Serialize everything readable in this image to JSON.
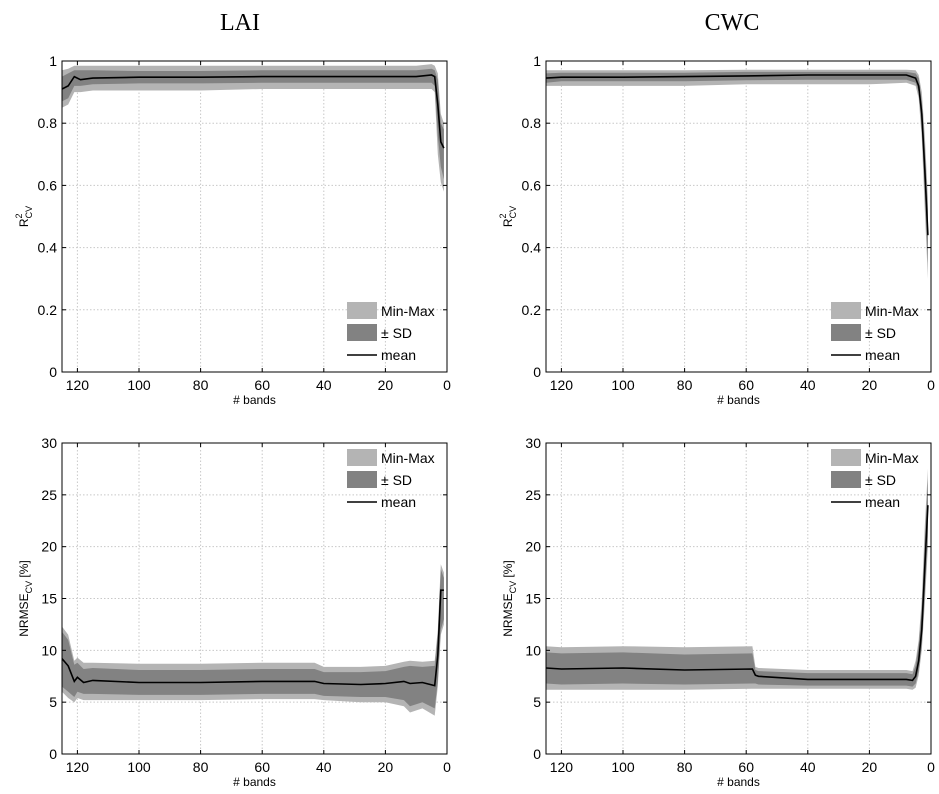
{
  "column_titles": [
    "LAI",
    "CWC"
  ],
  "legend": {
    "minmax": "Min-Max",
    "sd": "± SD",
    "mean": "mean"
  },
  "colors": {
    "minmax": "#b4b4b4",
    "sd": "#828282",
    "mean": "#000000",
    "grid": "#c8c8c8"
  },
  "chart_data": [
    {
      "id": "lai-r2",
      "type": "area",
      "title": "LAI",
      "xlabel": "# bands",
      "ylabel": "R²CV",
      "ylabel_main": "R",
      "ylabel_sup": "2",
      "ylabel_sub": "CV",
      "ylabel_suffix": "",
      "xlim": [
        125,
        0
      ],
      "ylim": [
        0,
        1
      ],
      "xticks": [
        120,
        100,
        80,
        60,
        40,
        20,
        0
      ],
      "yticks": [
        0,
        0.2,
        0.4,
        0.6,
        0.8,
        1
      ],
      "ytick_labels": [
        "0",
        "0.2",
        "0.4",
        "0.6",
        "0.8",
        "1"
      ],
      "grid": true,
      "legend_position": "bottom-right",
      "x": [
        125,
        123,
        121,
        119,
        115,
        100,
        80,
        60,
        40,
        20,
        10,
        5,
        4,
        3,
        2,
        1
      ],
      "mean": [
        0.91,
        0.92,
        0.95,
        0.94,
        0.945,
        0.948,
        0.948,
        0.95,
        0.95,
        0.95,
        0.95,
        0.955,
        0.95,
        0.86,
        0.74,
        0.72
      ],
      "sd_low": [
        0.87,
        0.88,
        0.92,
        0.92,
        0.925,
        0.928,
        0.928,
        0.93,
        0.93,
        0.93,
        0.93,
        0.93,
        0.92,
        0.76,
        0.66,
        0.62
      ],
      "sd_high": [
        0.95,
        0.96,
        0.97,
        0.97,
        0.97,
        0.968,
        0.968,
        0.97,
        0.97,
        0.97,
        0.97,
        0.975,
        0.97,
        0.94,
        0.8,
        0.78
      ],
      "min": [
        0.85,
        0.86,
        0.9,
        0.9,
        0.905,
        0.905,
        0.905,
        0.91,
        0.91,
        0.91,
        0.91,
        0.91,
        0.9,
        0.7,
        0.61,
        0.58
      ],
      "max": [
        0.97,
        0.975,
        0.985,
        0.985,
        0.985,
        0.985,
        0.985,
        0.985,
        0.985,
        0.985,
        0.985,
        0.99,
        0.985,
        0.96,
        0.83,
        0.8
      ]
    },
    {
      "id": "cwc-r2",
      "type": "area",
      "title": "CWC",
      "xlabel": "# bands",
      "ylabel": "R²CV",
      "ylabel_main": "R",
      "ylabel_sup": "2",
      "ylabel_sub": "CV",
      "ylabel_suffix": "",
      "xlim": [
        125,
        0
      ],
      "ylim": [
        0,
        1
      ],
      "xticks": [
        120,
        100,
        80,
        60,
        40,
        20,
        0
      ],
      "yticks": [
        0,
        0.2,
        0.4,
        0.6,
        0.8,
        1
      ],
      "ytick_labels": [
        "0",
        "0.2",
        "0.4",
        "0.6",
        "0.8",
        "1"
      ],
      "grid": true,
      "legend_position": "bottom-right",
      "x": [
        125,
        120,
        100,
        80,
        60,
        40,
        20,
        8,
        5,
        4,
        3,
        2,
        1
      ],
      "mean": [
        0.945,
        0.948,
        0.948,
        0.95,
        0.952,
        0.955,
        0.955,
        0.955,
        0.945,
        0.92,
        0.83,
        0.65,
        0.44
      ],
      "sd_low": [
        0.93,
        0.935,
        0.935,
        0.935,
        0.938,
        0.94,
        0.94,
        0.94,
        0.93,
        0.9,
        0.78,
        0.58,
        0.35
      ],
      "sd_high": [
        0.96,
        0.962,
        0.962,
        0.962,
        0.965,
        0.965,
        0.965,
        0.965,
        0.96,
        0.945,
        0.87,
        0.72,
        0.52
      ],
      "min": [
        0.92,
        0.92,
        0.92,
        0.92,
        0.925,
        0.925,
        0.925,
        0.93,
        0.92,
        0.88,
        0.75,
        0.52,
        0.3
      ],
      "max": [
        0.97,
        0.97,
        0.97,
        0.97,
        0.972,
        0.972,
        0.972,
        0.972,
        0.97,
        0.955,
        0.9,
        0.76,
        0.56
      ]
    },
    {
      "id": "lai-nrmse",
      "type": "area",
      "title": "LAI",
      "xlabel": "# bands",
      "ylabel": "NRMSECV [%]",
      "ylabel_main": "NRMSE",
      "ylabel_sup": "",
      "ylabel_sub": "CV",
      "ylabel_suffix": " [%]",
      "xlim": [
        125,
        0
      ],
      "ylim": [
        0,
        30
      ],
      "xticks": [
        120,
        100,
        80,
        60,
        40,
        20,
        0
      ],
      "yticks": [
        0,
        5,
        10,
        15,
        20,
        25,
        30
      ],
      "ytick_labels": [
        "0",
        "5",
        "10",
        "15",
        "20",
        "25",
        "30"
      ],
      "grid": true,
      "legend_position": "top-right",
      "x": [
        125,
        123,
        121,
        120,
        118,
        115,
        100,
        80,
        60,
        43,
        40,
        28,
        20,
        14,
        12,
        8,
        4,
        3,
        2,
        1
      ],
      "mean": [
        9.2,
        8.5,
        7.0,
        7.4,
        6.9,
        7.1,
        6.9,
        6.9,
        7.0,
        7.0,
        6.8,
        6.7,
        6.8,
        7.0,
        6.8,
        6.9,
        6.6,
        9.5,
        15.8,
        15.8
      ],
      "sd_low": [
        6.5,
        6.0,
        5.5,
        6.0,
        5.8,
        5.8,
        5.7,
        5.7,
        5.8,
        5.8,
        5.6,
        5.5,
        5.5,
        5.2,
        4.6,
        5.0,
        4.4,
        7.0,
        12.0,
        13.0
      ],
      "sd_high": [
        11.8,
        11.0,
        8.6,
        8.8,
        8.2,
        8.3,
        8.1,
        8.1,
        8.2,
        8.2,
        7.9,
        7.9,
        8.0,
        8.4,
        8.5,
        8.4,
        8.5,
        11.5,
        17.8,
        17.0
      ],
      "min": [
        6.0,
        5.4,
        5.0,
        5.4,
        5.2,
        5.2,
        5.2,
        5.2,
        5.3,
        5.3,
        5.2,
        5.0,
        5.0,
        4.6,
        4.0,
        4.4,
        3.7,
        6.5,
        11.5,
        12.5
      ],
      "max": [
        12.3,
        11.5,
        9.0,
        9.3,
        8.8,
        8.8,
        8.7,
        8.7,
        8.8,
        8.8,
        8.4,
        8.4,
        8.5,
        8.9,
        9.0,
        8.9,
        9.0,
        12.0,
        18.3,
        17.5
      ]
    },
    {
      "id": "cwc-nrmse",
      "type": "area",
      "title": "CWC",
      "xlabel": "# bands",
      "ylabel": "NRMSECV [%]",
      "ylabel_main": "NRMSE",
      "ylabel_sup": "",
      "ylabel_sub": "CV",
      "ylabel_suffix": " [%]",
      "xlim": [
        125,
        0
      ],
      "ylim": [
        0,
        30
      ],
      "xticks": [
        120,
        100,
        80,
        60,
        40,
        20,
        0
      ],
      "yticks": [
        0,
        5,
        10,
        15,
        20,
        25,
        30
      ],
      "ytick_labels": [
        "0",
        "5",
        "10",
        "15",
        "20",
        "25",
        "30"
      ],
      "grid": true,
      "legend_position": "top-right",
      "x": [
        125,
        120,
        100,
        80,
        58,
        57,
        56,
        40,
        20,
        8,
        6,
        5,
        4,
        3,
        2,
        1
      ],
      "mean": [
        8.3,
        8.2,
        8.3,
        8.1,
        8.2,
        7.6,
        7.5,
        7.2,
        7.2,
        7.2,
        7.1,
        7.5,
        9.0,
        12.0,
        18.0,
        24.0
      ],
      "sd_low": [
        6.8,
        6.7,
        6.8,
        6.7,
        6.8,
        6.8,
        6.7,
        6.6,
        6.6,
        6.6,
        6.5,
        6.8,
        8.0,
        10.5,
        15.5,
        21.0
      ],
      "sd_high": [
        9.8,
        9.7,
        9.8,
        9.6,
        9.7,
        8.1,
        8.0,
        7.8,
        7.8,
        7.8,
        7.7,
        8.5,
        10.5,
        14.0,
        20.5,
        26.5
      ],
      "min": [
        6.2,
        6.2,
        6.2,
        6.2,
        6.3,
        6.3,
        6.3,
        6.3,
        6.3,
        6.3,
        6.2,
        6.4,
        7.6,
        10.0,
        14.5,
        20.0
      ],
      "max": [
        10.4,
        10.3,
        10.4,
        10.3,
        10.4,
        8.4,
        8.3,
        8.1,
        8.1,
        8.1,
        8.0,
        9.0,
        11.0,
        15.0,
        22.0,
        27.5
      ]
    }
  ]
}
